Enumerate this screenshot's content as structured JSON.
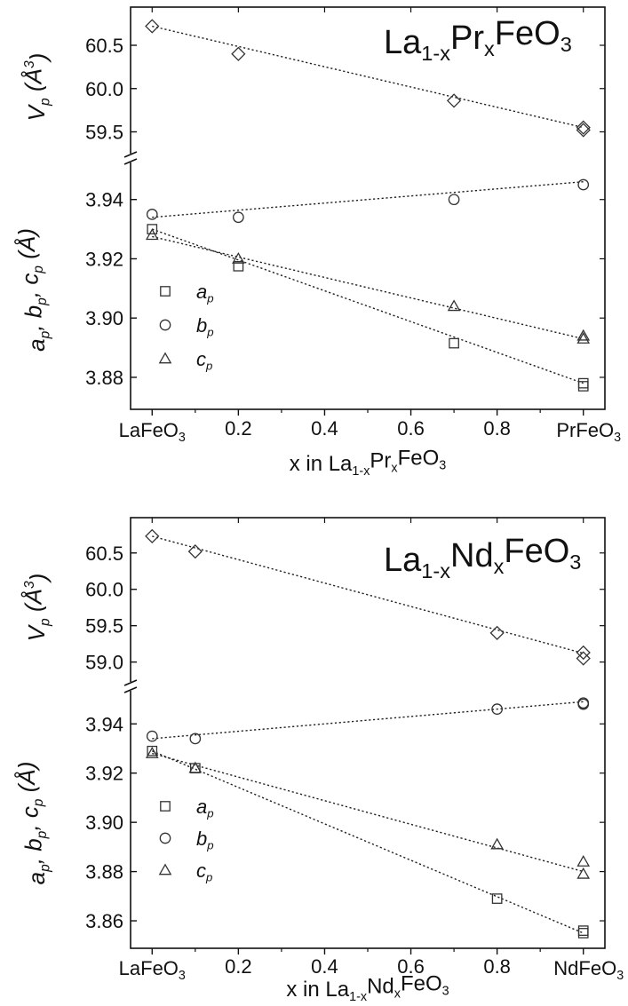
{
  "chart_data": [
    {
      "type": "scatter",
      "title": {
        "main_a": "La",
        "sub_a": "1-x",
        "main_b": "Pr",
        "sub_b": "x",
        "main_c": "FeO",
        "sub_c": "3"
      },
      "xlabel": {
        "a": "x in La",
        "sub_a": "1-x",
        "b": "Pr",
        "sub_b": "x",
        "c": "FeO",
        "sub_c": "3"
      },
      "x_end_labels": {
        "left": "LaFeO",
        "left_sub": "3",
        "right": "PrFeO",
        "right_sub": "3"
      },
      "x_ticks": [
        "0.2",
        "0.4",
        "0.6",
        "0.8"
      ],
      "xlim": [
        -0.05,
        1.05
      ],
      "upper_panel": {
        "ylabel": {
          "v": "V",
          "sub": "p",
          "unit_a": " (Å",
          "sup": "3",
          "unit_b": ")"
        },
        "ylim": [
          59.3,
          60.9
        ],
        "y_ticks": [
          "60.5",
          "60.0",
          "59.5"
        ],
        "series": [
          {
            "marker": "diamond",
            "x": [
              0,
              0.2,
              0.7,
              1.0,
              1.0
            ],
            "y": [
              60.72,
              60.4,
              59.86,
              59.55,
              59.52
            ],
            "fit": [
              60.72,
              59.55
            ]
          }
        ]
      },
      "lower_panel": {
        "ylabel": {
          "a": "a",
          "sa": "p",
          "b": ", b",
          "sb": "p",
          "c": ", c",
          "sc": "p",
          "unit": " (Å)"
        },
        "ylim": [
          3.871,
          3.951
        ],
        "y_ticks": [
          "3.94",
          "3.92",
          "3.90",
          "3.88"
        ],
        "legend": [
          {
            "symbol": "square",
            "label": "a",
            "sub": "p"
          },
          {
            "symbol": "circle",
            "label": "b",
            "sub": "p"
          },
          {
            "symbol": "triangle",
            "label": "c",
            "sub": "p"
          }
        ],
        "series": [
          {
            "name": "a_p",
            "marker": "square",
            "x": [
              0,
              0.2,
              0.7,
              1.0,
              1.0
            ],
            "y": [
              3.93,
              3.9175,
              3.8915,
              3.878,
              3.877
            ],
            "fit": [
              3.93,
              3.878
            ]
          },
          {
            "name": "b_p",
            "marker": "circle",
            "x": [
              0,
              0.2,
              0.7,
              1.0
            ],
            "y": [
              3.935,
              3.934,
              3.94,
              3.945
            ],
            "fit": [
              3.934,
              3.946
            ]
          },
          {
            "name": "c_p",
            "marker": "triangle",
            "x": [
              0,
              0.2,
              0.7,
              1.0,
              1.0
            ],
            "y": [
              3.928,
              3.92,
              3.904,
              3.894,
              3.893
            ],
            "fit": [
              3.9275,
              3.893
            ]
          }
        ]
      }
    },
    {
      "type": "scatter",
      "title": {
        "main_a": "La",
        "sub_a": "1-x",
        "main_b": "Nd",
        "sub_b": "x",
        "main_c": "FeO",
        "sub_c": "3"
      },
      "xlabel": {
        "a": "x in La",
        "sub_a": "1-x",
        "b": "Nd",
        "sub_b": "x",
        "c": "FeO",
        "sub_c": "3"
      },
      "x_end_labels": {
        "left": "LaFeO",
        "left_sub": "3",
        "right": "NdFeO",
        "right_sub": "3"
      },
      "x_ticks": [
        "0.2",
        "0.4",
        "0.6",
        "0.8"
      ],
      "xlim": [
        -0.05,
        1.05
      ],
      "upper_panel": {
        "ylabel": {
          "v": "V",
          "sub": "p",
          "unit_a": " (Å",
          "sup": "3",
          "unit_b": ")"
        },
        "ylim": [
          58.8,
          60.9
        ],
        "y_ticks": [
          "60.5",
          "60.0",
          "59.5",
          "59.0"
        ],
        "series": [
          {
            "marker": "diamond",
            "x": [
              0,
              0.1,
              0.8,
              1.0,
              1.0
            ],
            "y": [
              60.73,
              60.52,
              59.4,
              59.13,
              59.05
            ],
            "fit": [
              60.73,
              59.12
            ]
          }
        ]
      },
      "lower_panel": {
        "ylabel": {
          "a": "a",
          "sa": "p",
          "b": ", b",
          "sb": "p",
          "c": ", c",
          "sc": "p",
          "unit": " (Å)"
        },
        "ylim": [
          3.851,
          3.952
        ],
        "y_ticks": [
          "3.94",
          "3.92",
          "3.90",
          "3.88",
          "3.86"
        ],
        "legend": [
          {
            "symbol": "square",
            "label": "a",
            "sub": "p"
          },
          {
            "symbol": "circle",
            "label": "b",
            "sub": "p"
          },
          {
            "symbol": "triangle",
            "label": "c",
            "sub": "p"
          }
        ],
        "series": [
          {
            "name": "a_p",
            "marker": "square",
            "x": [
              0,
              0.1,
              0.8,
              1.0,
              1.0
            ],
            "y": [
              3.929,
              3.922,
              3.869,
              3.856,
              3.855
            ],
            "fit": [
              3.929,
              3.855
            ]
          },
          {
            "name": "b_p",
            "marker": "circle",
            "x": [
              0,
              0.1,
              0.8,
              1.0,
              1.0
            ],
            "y": [
              3.935,
              3.934,
              3.946,
              3.9485,
              3.948
            ],
            "fit": [
              3.934,
              3.949
            ]
          },
          {
            "name": "c_p",
            "marker": "triangle",
            "x": [
              0,
              0.1,
              0.8,
              1.0,
              1.0
            ],
            "y": [
              3.928,
              3.922,
              3.891,
              3.884,
              3.879
            ],
            "fit": [
              3.928,
              3.88
            ]
          }
        ]
      }
    }
  ]
}
